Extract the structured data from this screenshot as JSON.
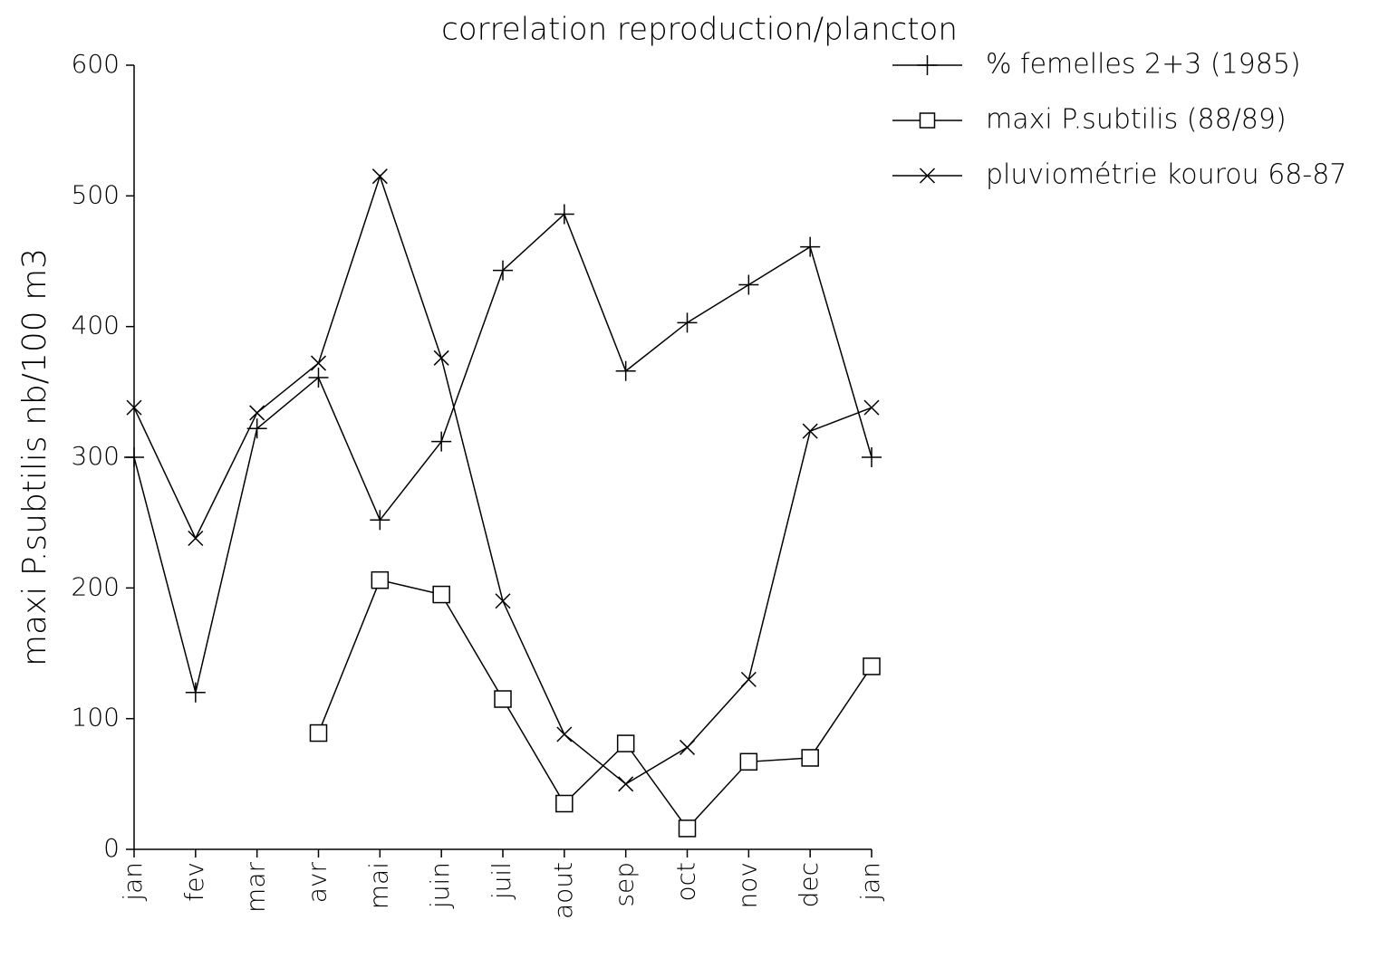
{
  "chart_data": {
    "type": "line",
    "title": "correlation reproduction/plancton",
    "y_label": "maxi P.subtilis nb/100 m3",
    "categories": [
      "jan",
      "fev",
      "mar",
      "avr",
      "mai",
      "juin",
      "juil",
      "aout",
      "sep",
      "oct",
      "nov",
      "dec",
      "jan"
    ],
    "series": [
      {
        "name": "% femelles 2+3 (1985)",
        "color": "#000000",
        "marker": "plus",
        "values": [
          300,
          120,
          322,
          361,
          252,
          312,
          443,
          486,
          366,
          403,
          432,
          461,
          300
        ]
      },
      {
        "name": "maxi P.subtilis (88/89)",
        "color": "#000000",
        "marker": "square",
        "values": [
          null,
          null,
          null,
          89,
          206,
          195,
          115,
          35,
          81,
          16,
          67,
          70,
          140
        ]
      },
      {
        "name": "pluviométrie kourou 68-87",
        "color": "#000000",
        "marker": "x",
        "values": [
          338,
          238,
          334,
          372,
          515,
          376,
          190,
          88,
          50,
          78,
          130,
          320,
          338
        ]
      }
    ],
    "ylim": [
      0,
      600
    ],
    "yticks": [
      0,
      100,
      200,
      300,
      400,
      500,
      600
    ],
    "legend": "top-right",
    "grid": false
  }
}
